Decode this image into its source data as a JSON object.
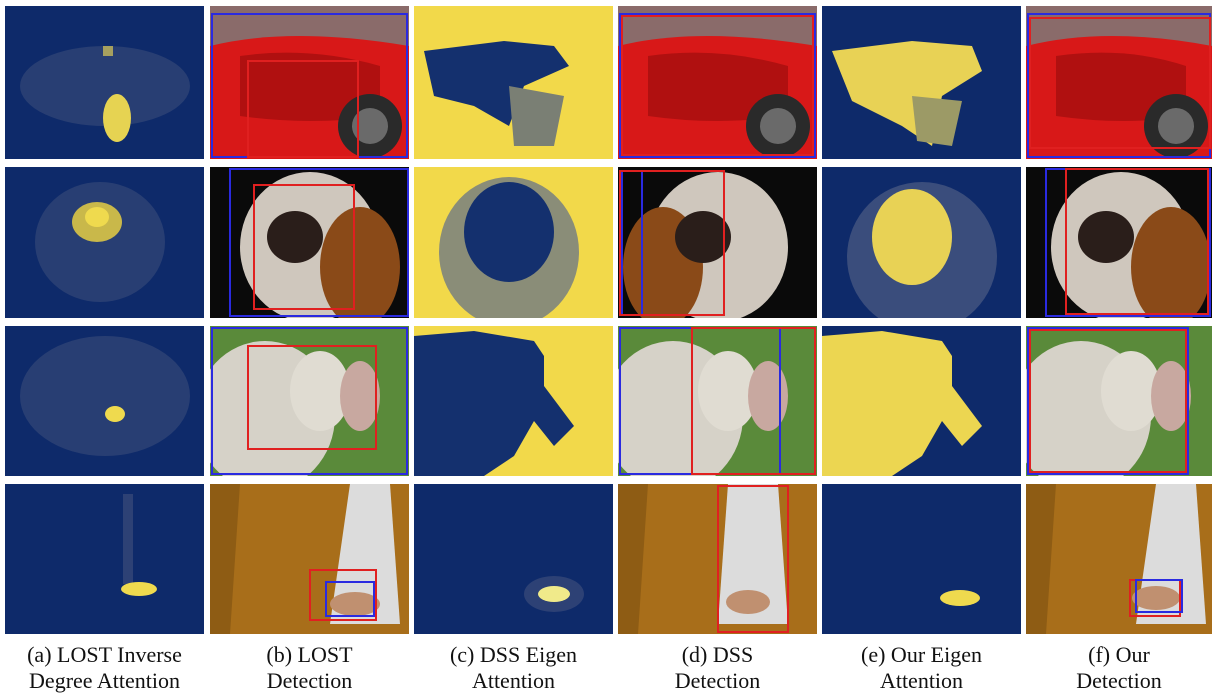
{
  "figure": {
    "captions": [
      {
        "line1": "(a) LOST Inverse",
        "line2": "Degree Attention"
      },
      {
        "line1": "(b) LOST",
        "line2": "Detection"
      },
      {
        "line1": "(c) DSS Eigen",
        "line2": "Attention"
      },
      {
        "line1": "(d) DSS",
        "line2": "Detection"
      },
      {
        "line1": "(e) Our Eigen",
        "line2": "Attention"
      },
      {
        "line1": "(f) Our",
        "line2": "Detection"
      }
    ],
    "rows": [
      "car",
      "dog",
      "cow",
      "cat"
    ],
    "colors": {
      "map_low": "#0e2a6a",
      "map_high": "#f4dc4a",
      "box_red": "#e02020",
      "box_blue": "#2a2ae0"
    }
  }
}
